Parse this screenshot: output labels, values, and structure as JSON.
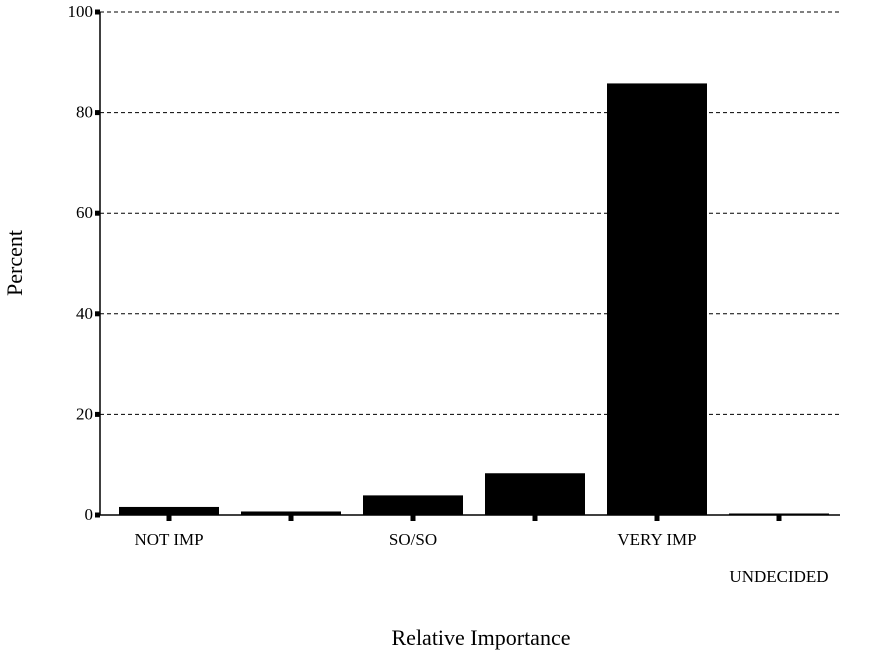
{
  "chart_data": {
    "type": "bar",
    "title": "",
    "xlabel": "Relative Importance",
    "ylabel": "Percent",
    "categories": [
      "NOT IMP",
      "",
      "SO/SO",
      "",
      "VERY IMP",
      "UNDECIDED"
    ],
    "values": [
      1.6,
      0.7,
      3.9,
      8.3,
      85.8,
      0.3
    ],
    "ylim": [
      0,
      100
    ],
    "yticks": [
      0,
      20,
      40,
      60,
      80,
      100
    ],
    "grid": "horizontal-dashed",
    "colors": {
      "bar": "#000000",
      "grid": "#000000",
      "axis": "#000000"
    }
  }
}
